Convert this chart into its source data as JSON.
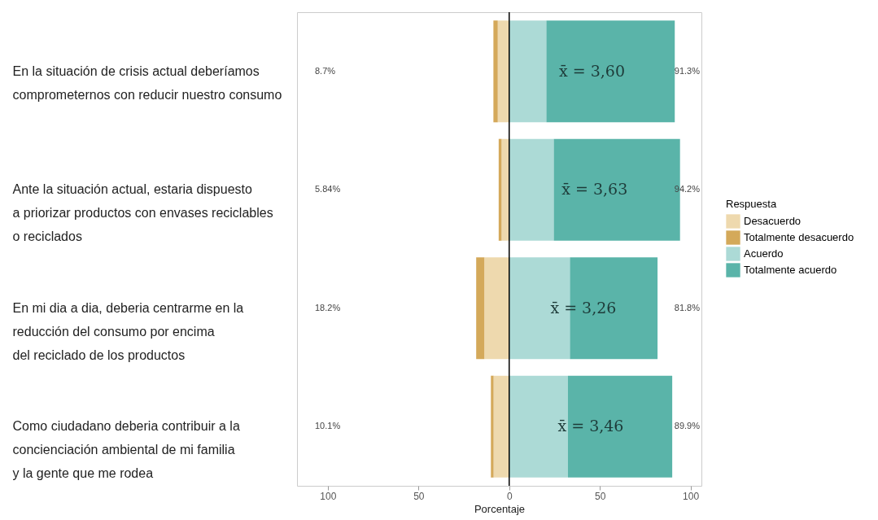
{
  "chart_data": {
    "type": "bar",
    "orientation": "horizontal",
    "stacked": true,
    "categories": [
      "En la situación de crisis actual deberíamos\ncomprometernos con reducir nuestro consumo",
      "Ante la situación actual, estaria dispuesto\na priorizar productos con envases reciclables\no reciclados",
      "En mi dia a dia, deberia centrarme en la\nreducción del consumo por encima\ndel reciclado de los productos",
      "Como ciudadano deberia contribuir a la\nconcienciación ambiental de mi familia\ny la gente que me rodea"
    ],
    "series": [
      {
        "name": "Desacuerdo",
        "color": "#eed9ae",
        "values": [
          -6.3,
          -4.2,
          -13.7,
          -8.6
        ]
      },
      {
        "name": "Totalmente desacuerdo",
        "color": "#d4a95a",
        "values": [
          -2.4,
          -1.6,
          -4.5,
          -1.5
        ]
      },
      {
        "name": "Acuerdo",
        "color": "#acdad6",
        "values": [
          20.5,
          24.6,
          33.5,
          32.4
        ]
      },
      {
        "name": "Totalmente acuerdo",
        "color": "#5ab4a9",
        "values": [
          70.8,
          69.6,
          48.3,
          57.5
        ]
      }
    ],
    "xlabel": "Porcentaje",
    "legend_title": "Respuesta",
    "legend": "right",
    "xlim": [
      -117,
      106
    ],
    "xticks": [
      {
        "value": -100,
        "label": "100"
      },
      {
        "value": -50,
        "label": "50"
      },
      0,
      50,
      100
    ],
    "ref_lines": [
      {
        "axis": "x",
        "value": 0,
        "color": "#000000"
      }
    ],
    "annotations": [
      "x̄ = 3,60",
      "x̄ = 3,63",
      "x̄ = 3,26",
      "x̄ = 3,46",
      "8.7%",
      "5.84%",
      "18.2%",
      "10.1%",
      "91.3%",
      "94.2%",
      "81.8%",
      "89.9%"
    ]
  }
}
